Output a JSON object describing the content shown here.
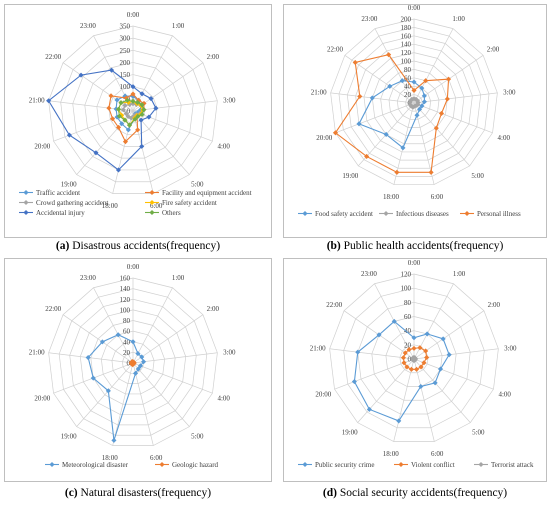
{
  "hours": [
    "0:00",
    "1:00",
    "2:00",
    "3:00",
    "4:00",
    "5:00",
    "6:00",
    "18:00",
    "19:00",
    "20:00",
    "21:00",
    "22:00",
    "23:00"
  ],
  "chart_data": [
    {
      "type": "radar",
      "caption_letter": "(a)",
      "caption_text": "Disastrous accidents(frequency)",
      "rmax": 350,
      "ticks": [
        0,
        50,
        100,
        150,
        200,
        250,
        300,
        350
      ],
      "tick_labels": [
        "0",
        "50",
        "100",
        "150",
        "200",
        "250",
        "300",
        "350"
      ],
      "series": [
        {
          "name": "Traffic accident",
          "color": "#5b9bd5",
          "values": [
            60,
            50,
            40,
            30,
            20,
            15,
            30,
            80,
            70,
            70,
            70,
            80,
            70
          ]
        },
        {
          "name": "Facility and equipment accident",
          "color": "#ed7d31",
          "values": [
            70,
            50,
            55,
            45,
            35,
            25,
            80,
            130,
            90,
            90,
            100,
            110,
            60
          ]
        },
        {
          "name": "Crowd gathering accident",
          "color": "#a5a5a5",
          "values": [
            30,
            30,
            40,
            40,
            30,
            20,
            20,
            30,
            30,
            30,
            40,
            40,
            30
          ]
        },
        {
          "name": "Fire safety accident",
          "color": "#ffc000",
          "values": [
            40,
            35,
            40,
            40,
            35,
            25,
            30,
            60,
            50,
            50,
            60,
            60,
            40
          ]
        },
        {
          "name": "Accidental injury",
          "color": "#4472c4",
          "values": [
            100,
            80,
            90,
            95,
            70,
            50,
            150,
            250,
            230,
            280,
            350,
            260,
            190
          ]
        },
        {
          "name": "Others",
          "color": "#70ad47",
          "values": [
            40,
            40,
            45,
            45,
            40,
            30,
            35,
            60,
            50,
            60,
            60,
            60,
            50
          ]
        }
      ]
    },
    {
      "type": "radar",
      "caption_letter": "(b)",
      "caption_text": "Public health accidents(frequency)",
      "rmax": 200,
      "ticks": [
        0,
        20,
        40,
        60,
        80,
        100,
        120,
        140,
        160,
        180,
        200
      ],
      "tick_labels": [
        "0",
        "20",
        "40",
        "60",
        "80",
        "100",
        "120",
        "140",
        "160",
        "180",
        "200"
      ],
      "series": [
        {
          "name": "Food safety accident",
          "color": "#5b9bd5",
          "values": [
            50,
            40,
            30,
            25,
            20,
            20,
            30,
            110,
            100,
            140,
            100,
            70,
            60
          ]
        },
        {
          "name": "Infectious diseases",
          "color": "#a5a5a5",
          "values": [
            10,
            10,
            10,
            10,
            10,
            8,
            8,
            10,
            10,
            10,
            10,
            10,
            10
          ]
        },
        {
          "name": "Personal illness",
          "color": "#ed7d31",
          "values": [
            30,
            60,
            100,
            80,
            70,
            80,
            170,
            170,
            170,
            200,
            130,
            170,
            130
          ]
        }
      ]
    },
    {
      "type": "radar",
      "caption_letter": "(c)",
      "caption_text": "Natural disasters(frequency)",
      "rmax": 160,
      "ticks": [
        0,
        20,
        40,
        60,
        80,
        100,
        120,
        140,
        160
      ],
      "tick_labels": [
        "0",
        "20",
        "40",
        "60",
        "80",
        "100",
        "120",
        "140",
        "160"
      ],
      "series": [
        {
          "name": "Meteorological disaster",
          "color": "#5b9bd5",
          "values": [
            40,
            20,
            20,
            20,
            15,
            15,
            20,
            150,
            70,
            80,
            85,
            70,
            60
          ]
        },
        {
          "name": "Geologic hazard",
          "color": "#ed7d31",
          "values": [
            2,
            2,
            2,
            2,
            2,
            2,
            2,
            3,
            3,
            3,
            3,
            3,
            3
          ]
        }
      ]
    },
    {
      "type": "radar",
      "caption_letter": "(d)",
      "caption_text": "Social security accidents(frequency)",
      "rmax": 120,
      "ticks": [
        0,
        20,
        40,
        60,
        80,
        100,
        120
      ],
      "tick_labels": [
        "0",
        "20",
        "40",
        "60",
        "80",
        "100",
        "120"
      ],
      "series": [
        {
          "name": "Public security crime",
          "color": "#5b9bd5",
          "values": [
            30,
            40,
            50,
            50,
            40,
            45,
            40,
            90,
            95,
            90,
            80,
            60,
            60
          ]
        },
        {
          "name": "Violent conflict",
          "color": "#ed7d31",
          "values": [
            15,
            18,
            20,
            18,
            15,
            15,
            15,
            15,
            15,
            15,
            15,
            15,
            15
          ]
        },
        {
          "name": "Terrorist attack",
          "color": "#a5a5a5",
          "values": [
            2,
            2,
            2,
            2,
            2,
            2,
            2,
            2,
            2,
            2,
            2,
            2,
            2
          ]
        }
      ]
    }
  ]
}
